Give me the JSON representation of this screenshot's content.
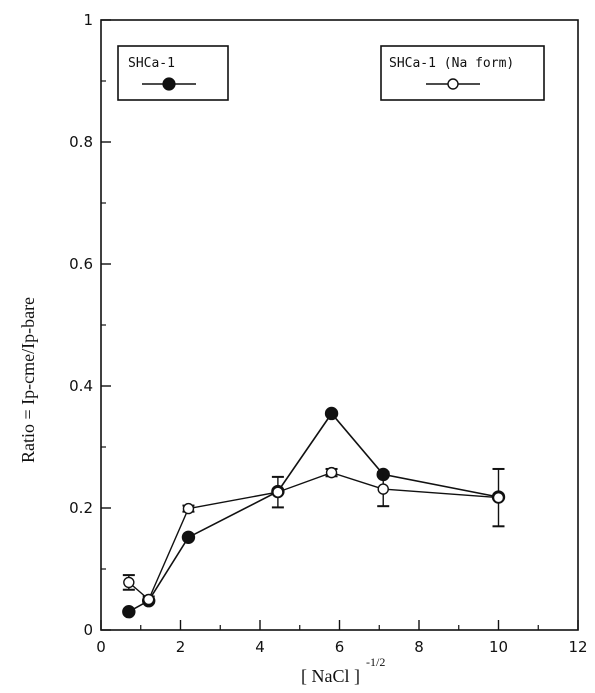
{
  "chart_data": {
    "type": "line",
    "xlabel": "[ NaCl ]",
    "xlabel_superscript": "-1/2",
    "ylabel": "Ratio = Ip-cme/Ip-bare",
    "xlim": [
      0,
      12
    ],
    "ylim": [
      0,
      1
    ],
    "x_ticks": [
      "0",
      "2",
      "4",
      "6",
      "8",
      "10",
      "12"
    ],
    "y_ticks": [
      "0",
      "0.2",
      "0.4",
      "0.6",
      "0.8",
      "1"
    ],
    "grid": false,
    "legend_placement": "top",
    "series": [
      {
        "name": "SHCa-1",
        "marker": "filled-circle",
        "x": [
          0.7,
          1.2,
          2.2,
          4.45,
          5.8,
          7.1,
          10.0
        ],
        "y": [
          0.03,
          0.048,
          0.152,
          0.227,
          0.355,
          0.255,
          0.218
        ],
        "err": [
          0.0,
          0.0,
          0.0,
          0.0,
          0.0,
          0.0,
          0.0
        ]
      },
      {
        "name": "SHCa-1 (Na form)",
        "marker": "open-circle",
        "x": [
          0.7,
          1.2,
          2.2,
          4.45,
          5.8,
          7.1,
          10.0
        ],
        "y": [
          0.078,
          0.05,
          0.199,
          0.226,
          0.258,
          0.231,
          0.217
        ],
        "err": [
          0.012,
          0.005,
          0.005,
          0.025,
          0.006,
          0.028,
          0.047
        ]
      }
    ]
  }
}
